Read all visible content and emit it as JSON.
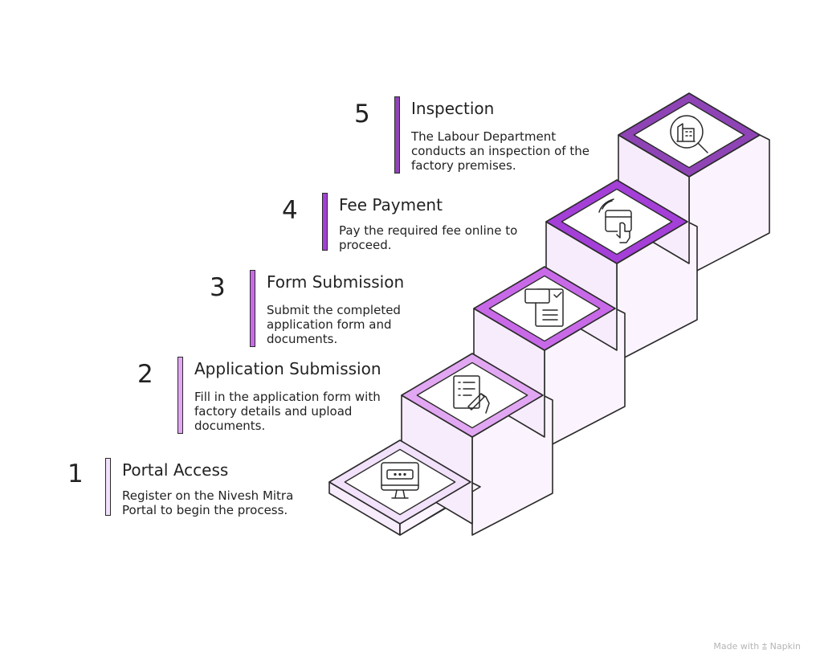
{
  "steps": [
    {
      "number": "1",
      "title": "Portal Access",
      "description": "Register on the Nivesh Mitra Portal to begin the process.",
      "icon": "monitor-icon",
      "color": "#f2e1fa"
    },
    {
      "number": "2",
      "title": "Application Submission",
      "description": "Fill in the application form with factory details and upload documents.",
      "icon": "checklist-signing-icon",
      "color": "#e2a7f2"
    },
    {
      "number": "3",
      "title": "Form Submission",
      "description": "Submit the completed application form and documents.",
      "icon": "form-document-icon",
      "color": "#c86ae8"
    },
    {
      "number": "4",
      "title": "Fee Payment",
      "description": "Pay the required fee online to proceed.",
      "icon": "tap-payment-icon",
      "color": "#a43fd8"
    },
    {
      "number": "5",
      "title": "Inspection",
      "description": "The Labour Department conducts an inspection of the factory premises.",
      "icon": "building-inspection-icon",
      "color": "#8f44b6"
    }
  ],
  "footer": {
    "text": "Made with",
    "brand": "Napkin"
  }
}
